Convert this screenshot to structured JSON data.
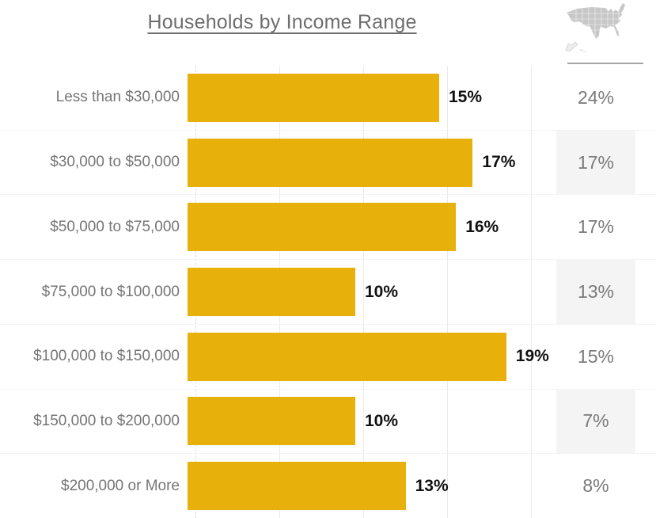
{
  "header": {
    "title": "Households by Income Range",
    "us_map_icon": "us-map-icon"
  },
  "colors": {
    "bar": "#E8B00A",
    "title_text": "#6E6E6E",
    "category_text": "#757575",
    "bar_value_text": "#111111",
    "us_value_text": "#7A7A7A",
    "alt_row_bg": "#F4F4F4",
    "gridline": "#EAEAEA",
    "row_line": "#F4F4F4",
    "divider": "#A5A5A5",
    "map_fill": "#C7C7C7"
  },
  "chart_data": {
    "type": "bar",
    "orientation": "horizontal",
    "title": "Households by Income Range",
    "categories": [
      "Less than $30,000",
      "$30,000 to $50,000",
      "$50,000 to $75,000",
      "$75,000 to $100,000",
      "$100,000 to $150,000",
      "$150,000 to $200,000",
      "$200,000 or More"
    ],
    "series": [
      {
        "name": "bar_values",
        "values": [
          15,
          17,
          16,
          10,
          19,
          10,
          13
        ],
        "labels": [
          "15%",
          "17%",
          "16%",
          "10%",
          "19%",
          "10%",
          "13%"
        ]
      },
      {
        "name": "us_comparison_column",
        "values": [
          24,
          17,
          17,
          13,
          15,
          7,
          8
        ],
        "labels": [
          "24%",
          "17%",
          "17%",
          "13%",
          "15%",
          "7%",
          "8%"
        ]
      }
    ],
    "xlim": [
      0,
      21.7
    ],
    "gridline_ticks": [
      0,
      5,
      10,
      15,
      20
    ],
    "legend": "none",
    "grid": "vertical-light"
  }
}
